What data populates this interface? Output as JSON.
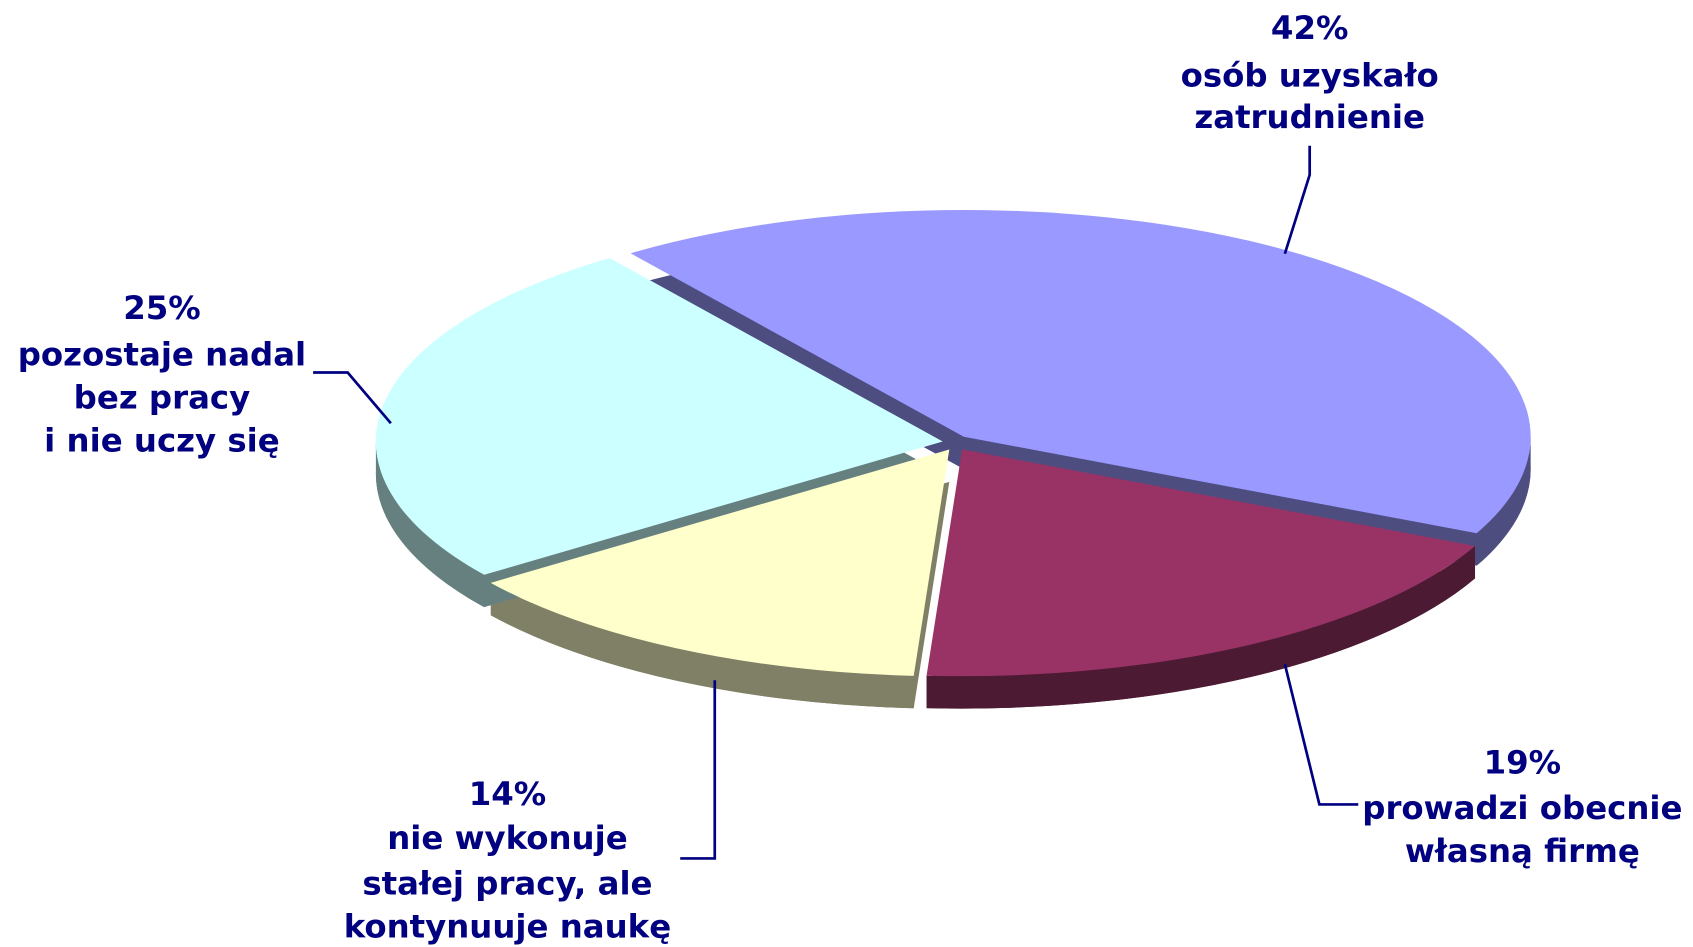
{
  "chart_data": {
    "type": "pie",
    "categories": [
      [
        "osób uzyskało",
        "zatrudnienie"
      ],
      [
        "prowadzi obecnie",
        "własną firmę"
      ],
      [
        "nie wykonuje",
        "stałej pracy, ale",
        "kontynuuje naukę"
      ],
      [
        "pozostaje nadal",
        "bez pracy",
        "i nie uczy się"
      ]
    ],
    "values": [
      42,
      19,
      14,
      25
    ],
    "value_labels": [
      "42%",
      "19%",
      "14%",
      "25%"
    ],
    "colors": [
      "#9999ff",
      "#993366",
      "#ffffcc",
      "#ccffff"
    ]
  }
}
